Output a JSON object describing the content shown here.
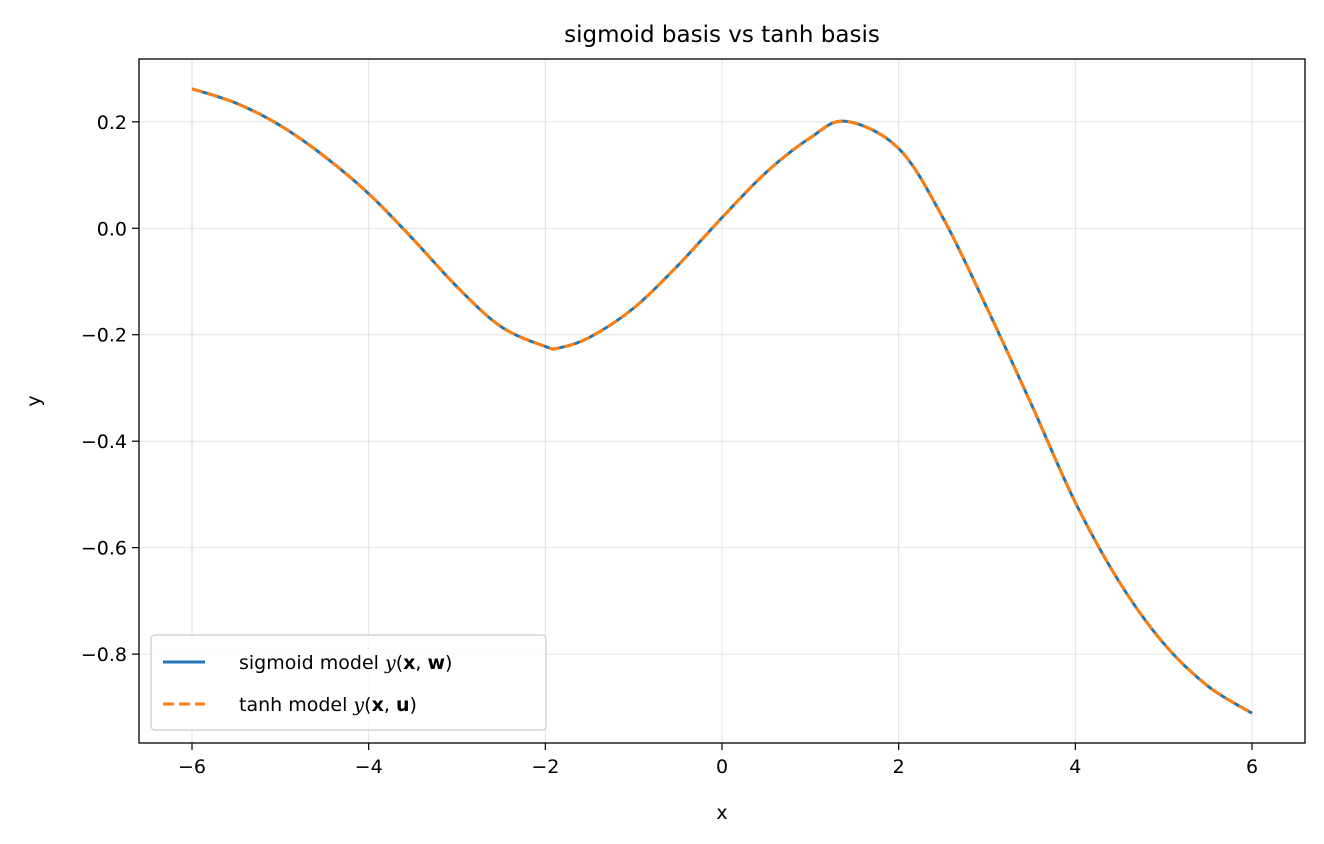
{
  "chart_data": {
    "type": "line",
    "title": "sigmoid basis vs tanh basis",
    "xlabel": "x",
    "ylabel": "y",
    "xlim": [
      -6.6,
      6.6
    ],
    "ylim": [
      -0.967,
      0.318
    ],
    "xticks": [
      -6,
      -4,
      -2,
      0,
      2,
      4,
      6
    ],
    "xtick_labels": [
      "−6",
      "−4",
      "−2",
      "0",
      "2",
      "4",
      "6"
    ],
    "yticks": [
      0.2,
      0.0,
      -0.2,
      -0.4,
      -0.6,
      -0.8
    ],
    "ytick_labels": [
      "0.2",
      "0.0",
      "−0.2",
      "−0.4",
      "−0.6",
      "−0.8"
    ],
    "grid": true,
    "legend_position": "lower-left",
    "series": [
      {
        "name_prefix": "sigmoid model ",
        "name_math": "y(x, w)",
        "name_math_var": "w",
        "color": "#1f77b4",
        "style": "solid",
        "x": [
          -6.0,
          -5.5,
          -5.0,
          -4.5,
          -4.0,
          -3.5,
          -3.0,
          -2.5,
          -2.0,
          -1.85,
          -1.5,
          -1.0,
          -0.5,
          0.0,
          0.5,
          1.0,
          1.4,
          2.0,
          2.5,
          3.0,
          3.5,
          4.0,
          4.5,
          5.0,
          5.5,
          6.0
        ],
        "y": [
          0.262,
          0.235,
          0.193,
          0.135,
          0.065,
          -0.02,
          -0.11,
          -0.185,
          -0.222,
          -0.225,
          -0.205,
          -0.15,
          -0.07,
          0.02,
          0.105,
          0.17,
          0.201,
          0.15,
          0.02,
          -0.15,
          -0.33,
          -0.515,
          -0.665,
          -0.78,
          -0.86,
          -0.911
        ]
      },
      {
        "name_prefix": "tanh model ",
        "name_math": "y(x, u)",
        "name_math_var": "u",
        "color": "#ff7f0e",
        "style": "dashed",
        "x": [
          -6.0,
          -5.5,
          -5.0,
          -4.5,
          -4.0,
          -3.5,
          -3.0,
          -2.5,
          -2.0,
          -1.85,
          -1.5,
          -1.0,
          -0.5,
          0.0,
          0.5,
          1.0,
          1.4,
          2.0,
          2.5,
          3.0,
          3.5,
          4.0,
          4.5,
          5.0,
          5.5,
          6.0
        ],
        "y": [
          0.262,
          0.235,
          0.193,
          0.135,
          0.065,
          -0.02,
          -0.11,
          -0.185,
          -0.222,
          -0.225,
          -0.205,
          -0.15,
          -0.07,
          0.02,
          0.105,
          0.17,
          0.201,
          0.15,
          0.02,
          -0.15,
          -0.33,
          -0.515,
          -0.665,
          -0.78,
          -0.86,
          -0.911
        ]
      }
    ]
  }
}
